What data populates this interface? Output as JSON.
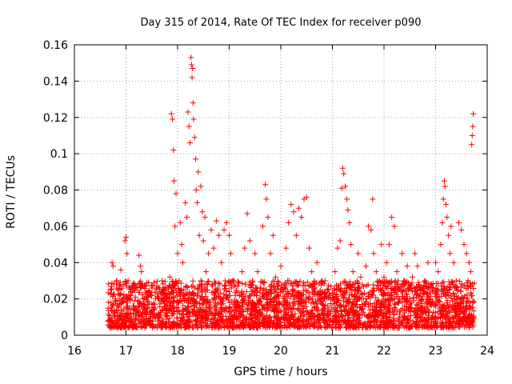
{
  "chart_data": {
    "type": "scatter",
    "title": "Day 315 of 2014, Rate Of TEC Index for receiver p090",
    "xlabel": "GPS time / hours",
    "ylabel": "ROTI / TECUs",
    "xlim": [
      16,
      24
    ],
    "ylim": [
      0,
      0.16
    ],
    "xticks": [
      "16",
      "17",
      "18",
      "19",
      "20",
      "21",
      "22",
      "23",
      "24"
    ],
    "yticks": [
      "0",
      "0.02",
      "0.04",
      "0.06",
      "0.08",
      "0.1",
      "0.12",
      "0.14",
      "0.16"
    ],
    "xtick_values": [
      16,
      17,
      18,
      19,
      20,
      21,
      22,
      23,
      24
    ],
    "ytick_values": [
      0,
      0.02,
      0.04,
      0.06,
      0.08,
      0.1,
      0.12,
      0.14,
      0.16
    ],
    "grid": true,
    "marker": "+",
    "color": "#ff0000",
    "series": [
      {
        "name": "ROTI",
        "points": [
          [
            16.68,
            0.008
          ],
          [
            16.7,
            0.015
          ],
          [
            16.72,
            0.025
          ],
          [
            16.73,
            0.04
          ],
          [
            16.75,
            0.038
          ],
          [
            16.77,
            0.012
          ],
          [
            16.8,
            0.02
          ],
          [
            16.82,
            0.03
          ],
          [
            16.85,
            0.009
          ],
          [
            16.88,
            0.022
          ],
          [
            16.9,
            0.036
          ],
          [
            16.93,
            0.018
          ],
          [
            16.95,
            0.028
          ],
          [
            16.98,
            0.052
          ],
          [
            17.0,
            0.054
          ],
          [
            17.02,
            0.045
          ],
          [
            17.04,
            0.03
          ],
          [
            17.06,
            0.015
          ],
          [
            17.1,
            0.01
          ],
          [
            17.15,
            0.025
          ],
          [
            17.2,
            0.012
          ],
          [
            17.25,
            0.044
          ],
          [
            17.28,
            0.038
          ],
          [
            17.3,
            0.035
          ],
          [
            17.33,
            0.02
          ],
          [
            17.38,
            0.012
          ],
          [
            17.42,
            0.018
          ],
          [
            17.46,
            0.008
          ],
          [
            17.5,
            0.022
          ],
          [
            17.55,
            0.014
          ],
          [
            17.6,
            0.026
          ],
          [
            17.65,
            0.011
          ],
          [
            17.7,
            0.03
          ],
          [
            17.75,
            0.016
          ],
          [
            17.8,
            0.023
          ],
          [
            17.85,
            0.032
          ],
          [
            17.88,
            0.122
          ],
          [
            17.9,
            0.119
          ],
          [
            17.92,
            0.102
          ],
          [
            17.93,
            0.085
          ],
          [
            17.95,
            0.06
          ],
          [
            17.97,
            0.078
          ],
          [
            18.0,
            0.045
          ],
          [
            18.03,
            0.03
          ],
          [
            18.05,
            0.062
          ],
          [
            18.08,
            0.05
          ],
          [
            18.1,
            0.04
          ],
          [
            18.12,
            0.025
          ],
          [
            18.15,
            0.073
          ],
          [
            18.18,
            0.065
          ],
          [
            18.2,
            0.123
          ],
          [
            18.22,
            0.115
          ],
          [
            18.24,
            0.106
          ],
          [
            18.26,
            0.153
          ],
          [
            18.27,
            0.149
          ],
          [
            18.28,
            0.142
          ],
          [
            18.29,
            0.147
          ],
          [
            18.3,
            0.128
          ],
          [
            18.31,
            0.119
          ],
          [
            18.33,
            0.109
          ],
          [
            18.35,
            0.097
          ],
          [
            18.36,
            0.08
          ],
          [
            18.38,
            0.073
          ],
          [
            18.4,
            0.09
          ],
          [
            18.42,
            0.055
          ],
          [
            18.45,
            0.082
          ],
          [
            18.48,
            0.068
          ],
          [
            18.5,
            0.052
          ],
          [
            18.53,
            0.065
          ],
          [
            18.55,
            0.035
          ],
          [
            18.6,
            0.045
          ],
          [
            18.65,
            0.058
          ],
          [
            18.7,
            0.048
          ],
          [
            18.75,
            0.063
          ],
          [
            18.8,
            0.055
          ],
          [
            18.85,
            0.04
          ],
          [
            18.9,
            0.058
          ],
          [
            18.95,
            0.062
          ],
          [
            19.0,
            0.055
          ],
          [
            19.03,
            0.045
          ],
          [
            19.08,
            0.03
          ],
          [
            19.12,
            0.022
          ],
          [
            19.17,
            0.018
          ],
          [
            19.2,
            0.012
          ],
          [
            19.25,
            0.035
          ],
          [
            19.3,
            0.048
          ],
          [
            19.35,
            0.067
          ],
          [
            19.4,
            0.052
          ],
          [
            19.45,
            0.03
          ],
          [
            19.5,
            0.045
          ],
          [
            19.55,
            0.035
          ],
          [
            19.6,
            0.02
          ],
          [
            19.65,
            0.06
          ],
          [
            19.7,
            0.083
          ],
          [
            19.72,
            0.075
          ],
          [
            19.75,
            0.065
          ],
          [
            19.8,
            0.045
          ],
          [
            19.85,
            0.055
          ],
          [
            19.9,
            0.032
          ],
          [
            19.95,
            0.022
          ],
          [
            20.0,
            0.038
          ],
          [
            20.05,
            0.025
          ],
          [
            20.1,
            0.048
          ],
          [
            20.15,
            0.062
          ],
          [
            20.2,
            0.072
          ],
          [
            20.25,
            0.068
          ],
          [
            20.3,
            0.055
          ],
          [
            20.35,
            0.07
          ],
          [
            20.4,
            0.065
          ],
          [
            20.45,
            0.075
          ],
          [
            20.5,
            0.076
          ],
          [
            20.55,
            0.048
          ],
          [
            20.6,
            0.035
          ],
          [
            20.65,
            0.028
          ],
          [
            20.7,
            0.04
          ],
          [
            20.75,
            0.022
          ],
          [
            20.8,
            0.03
          ],
          [
            20.85,
            0.015
          ],
          [
            20.9,
            0.025
          ],
          [
            20.95,
            0.012
          ],
          [
            21.0,
            0.02
          ],
          [
            21.05,
            0.035
          ],
          [
            21.1,
            0.048
          ],
          [
            21.15,
            0.052
          ],
          [
            21.18,
            0.081
          ],
          [
            21.2,
            0.092
          ],
          [
            21.22,
            0.089
          ],
          [
            21.25,
            0.082
          ],
          [
            21.28,
            0.075
          ],
          [
            21.3,
            0.069
          ],
          [
            21.33,
            0.062
          ],
          [
            21.36,
            0.05
          ],
          [
            21.4,
            0.035
          ],
          [
            21.45,
            0.025
          ],
          [
            21.5,
            0.045
          ],
          [
            21.55,
            0.032
          ],
          [
            21.6,
            0.02
          ],
          [
            21.65,
            0.038
          ],
          [
            21.7,
            0.06
          ],
          [
            21.75,
            0.058
          ],
          [
            21.78,
            0.075
          ],
          [
            21.8,
            0.045
          ],
          [
            21.85,
            0.035
          ],
          [
            21.9,
            0.025
          ],
          [
            21.95,
            0.05
          ],
          [
            22.0,
            0.032
          ],
          [
            22.05,
            0.04
          ],
          [
            22.1,
            0.05
          ],
          [
            22.15,
            0.065
          ],
          [
            22.2,
            0.06
          ],
          [
            22.25,
            0.035
          ],
          [
            22.3,
            0.02
          ],
          [
            22.35,
            0.045
          ],
          [
            22.4,
            0.03
          ],
          [
            22.45,
            0.038
          ],
          [
            22.5,
            0.02
          ],
          [
            22.55,
            0.032
          ],
          [
            22.6,
            0.045
          ],
          [
            22.65,
            0.038
          ],
          [
            22.7,
            0.025
          ],
          [
            22.75,
            0.015
          ],
          [
            22.8,
            0.03
          ],
          [
            22.85,
            0.04
          ],
          [
            22.9,
            0.02
          ],
          [
            22.95,
            0.025
          ],
          [
            23.0,
            0.04
          ],
          [
            23.05,
            0.035
          ],
          [
            23.1,
            0.05
          ],
          [
            23.13,
            0.062
          ],
          [
            23.15,
            0.075
          ],
          [
            23.17,
            0.085
          ],
          [
            23.18,
            0.082
          ],
          [
            23.2,
            0.072
          ],
          [
            23.22,
            0.065
          ],
          [
            23.25,
            0.055
          ],
          [
            23.28,
            0.045
          ],
          [
            23.3,
            0.06
          ],
          [
            23.35,
            0.04
          ],
          [
            23.4,
            0.03
          ],
          [
            23.45,
            0.062
          ],
          [
            23.5,
            0.058
          ],
          [
            23.55,
            0.05
          ],
          [
            23.6,
            0.045
          ],
          [
            23.63,
            0.03
          ],
          [
            23.65,
            0.04
          ],
          [
            23.68,
            0.035
          ],
          [
            23.7,
            0.105
          ],
          [
            23.71,
            0.11
          ],
          [
            23.72,
            0.115
          ],
          [
            23.73,
            0.122
          ]
        ],
        "band": {
          "x_start": 16.65,
          "x_end": 23.75,
          "y_min": 0.004,
          "y_max": 0.03,
          "count": 3000
        }
      }
    ]
  }
}
